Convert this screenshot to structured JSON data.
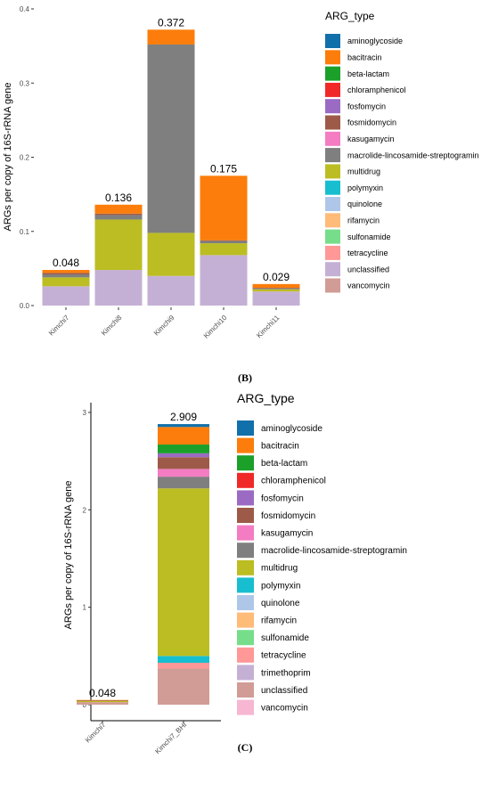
{
  "chart_data": [
    {
      "panel": "(B)",
      "type": "bar",
      "stacked": true,
      "ylabel": "ARGs per copy of 16S-rRNA gene",
      "xlabel": "",
      "ylim": [
        0,
        0.4
      ],
      "yticks": [
        "0.0",
        "0.1",
        "0.2",
        "0.3",
        "0.4"
      ],
      "ytick_values": [
        0,
        0.1,
        0.2,
        0.3,
        0.4
      ],
      "grid": false,
      "legend_title": "ARG_type",
      "legend_position": "right",
      "categories": [
        "Kimchi7",
        "Kimchi8",
        "Kimchi9",
        "Kimchi10",
        "Kimchi11"
      ],
      "totals": [
        "0.048",
        "0.136",
        "0.372",
        "0.175",
        "0.029"
      ],
      "legend": [
        {
          "name": "aminoglycoside",
          "color": "#1170AA"
        },
        {
          "name": "bacitracin",
          "color": "#FC7D0B"
        },
        {
          "name": "beta-lactam",
          "color": "#1BA02A"
        },
        {
          "name": "chloramphenicol",
          "color": "#F02828"
        },
        {
          "name": "fosfomycin",
          "color": "#9B6BC4"
        },
        {
          "name": "fosmidomycin",
          "color": "#9E5A48"
        },
        {
          "name": "kasugamycin",
          "color": "#F47CC2"
        },
        {
          "name": "macrolide-lincosamide-streptogramin",
          "color": "#7F7F7F"
        },
        {
          "name": "multidrug",
          "color": "#BCBD22"
        },
        {
          "name": "polymyxin",
          "color": "#17BECF"
        },
        {
          "name": "quinolone",
          "color": "#AEC7E8"
        },
        {
          "name": "rifamycin",
          "color": "#FFBB78"
        },
        {
          "name": "sulfonamide",
          "color": "#76DE8A"
        },
        {
          "name": "tetracycline",
          "color": "#FF9896"
        },
        {
          "name": "unclassified",
          "color": "#C5B0D5"
        },
        {
          "name": "vancomycin",
          "color": "#D19C96"
        }
      ],
      "series": [
        {
          "name": "unclassified",
          "values": [
            0.026,
            0.048,
            0.04,
            0.068,
            0.019
          ]
        },
        {
          "name": "multidrug",
          "values": [
            0.012,
            0.068,
            0.058,
            0.016,
            0.003
          ]
        },
        {
          "name": "macrolide-lincosamide-streptogramin",
          "values": [
            0.004,
            0.006,
            0.254,
            0.003,
            0.001
          ]
        },
        {
          "name": "fosmidomycin",
          "values": [
            0.002,
            0.002,
            0.0,
            0.001,
            0.001
          ]
        },
        {
          "name": "bacitracin",
          "values": [
            0.004,
            0.012,
            0.02,
            0.087,
            0.005
          ]
        }
      ]
    },
    {
      "panel": "(C)",
      "type": "bar",
      "stacked": true,
      "ylabel": "ARGs per copy of 16S-rRNA gene",
      "xlabel": "",
      "ylim": [
        0,
        3.1
      ],
      "yticks": [
        "0",
        "1",
        "2",
        "3"
      ],
      "ytick_values": [
        0,
        1,
        2,
        3
      ],
      "grid": false,
      "legend_title": "ARG_type",
      "legend_position": "right",
      "categories": [
        "Kimchi7",
        "Kimchi7_BHI"
      ],
      "totals": [
        "0.048",
        "2.909"
      ],
      "legend": [
        {
          "name": "aminoglycoside",
          "color": "#1170AA"
        },
        {
          "name": "bacitracin",
          "color": "#FC7D0B"
        },
        {
          "name": "beta-lactam",
          "color": "#1BA02A"
        },
        {
          "name": "chloramphenicol",
          "color": "#F02828"
        },
        {
          "name": "fosfomycin",
          "color": "#9B6BC4"
        },
        {
          "name": "fosmidomycin",
          "color": "#9E5A48"
        },
        {
          "name": "kasugamycin",
          "color": "#F47CC2"
        },
        {
          "name": "macrolide-lincosamide-streptogramin",
          "color": "#7F7F7F"
        },
        {
          "name": "multidrug",
          "color": "#BCBD22"
        },
        {
          "name": "polymyxin",
          "color": "#17BECF"
        },
        {
          "name": "quinolone",
          "color": "#AEC7E8"
        },
        {
          "name": "rifamycin",
          "color": "#FFBB78"
        },
        {
          "name": "sulfonamide",
          "color": "#76DE8A"
        },
        {
          "name": "tetracycline",
          "color": "#FF9896"
        },
        {
          "name": "trimethoprim",
          "color": "#C5B0D5"
        },
        {
          "name": "unclassified",
          "color": "#D19C96"
        },
        {
          "name": "vancomycin",
          "color": "#F7B6D2"
        }
      ],
      "series": [
        {
          "name": "unclassified",
          "values": [
            0.026,
            0.37
          ]
        },
        {
          "name": "tetracycline",
          "values": [
            0.0,
            0.06
          ]
        },
        {
          "name": "polymyxin",
          "values": [
            0.0,
            0.07
          ]
        },
        {
          "name": "multidrug",
          "values": [
            0.012,
            1.72
          ]
        },
        {
          "name": "macrolide-lincosamide-streptogramin",
          "values": [
            0.004,
            0.12
          ]
        },
        {
          "name": "kasugamycin",
          "values": [
            0.0,
            0.08
          ]
        },
        {
          "name": "fosmidomycin",
          "values": [
            0.002,
            0.12
          ]
        },
        {
          "name": "fosfomycin",
          "values": [
            0.0,
            0.04
          ]
        },
        {
          "name": "beta-lactam",
          "values": [
            0.0,
            0.09
          ]
        },
        {
          "name": "bacitracin",
          "values": [
            0.004,
            0.18
          ]
        },
        {
          "name": "aminoglycoside",
          "values": [
            0.0,
            0.03
          ]
        }
      ]
    }
  ]
}
